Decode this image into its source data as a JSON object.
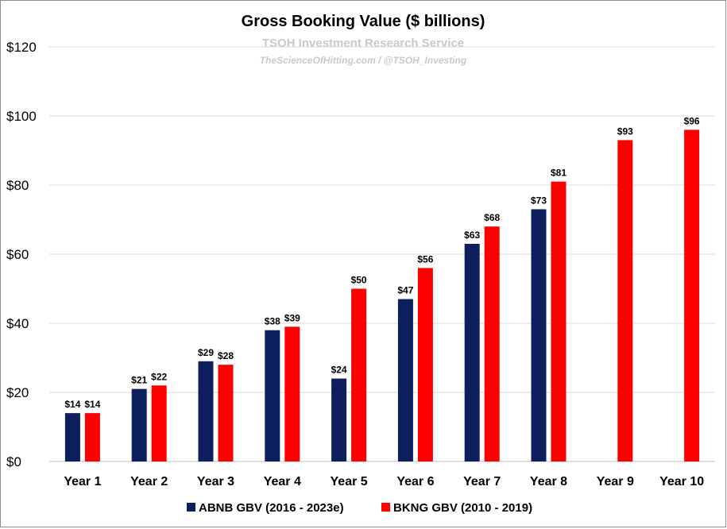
{
  "chart_data": {
    "type": "bar",
    "title": "Gross Booking Value ($ billions)",
    "subtitle": "TSOH Investment Research Service",
    "credit": "TheScienceOfHitting.com / @TSOH_Investing",
    "categories": [
      "Year 1",
      "Year 2",
      "Year 3",
      "Year 4",
      "Year 5",
      "Year 6",
      "Year 7",
      "Year 8",
      "Year 9",
      "Year 10"
    ],
    "series": [
      {
        "name": "ABNB GBV (2016 - 2023e)",
        "color": "#0d1f5c",
        "values": [
          14,
          21,
          29,
          38,
          24,
          47,
          63,
          73,
          null,
          null
        ],
        "labels": [
          "$14",
          "$21",
          "$29",
          "$38",
          "$24",
          "$47",
          "$63",
          "$73",
          null,
          null
        ]
      },
      {
        "name": "BKNG GBV (2010 - 2019)",
        "color": "#ff0000",
        "values": [
          14,
          22,
          28,
          39,
          50,
          56,
          68,
          81,
          93,
          96
        ],
        "labels": [
          "$14",
          "$22",
          "$28",
          "$39",
          "$50",
          "$56",
          "$68",
          "$81",
          "$93",
          "$96"
        ]
      }
    ],
    "yticks": [
      {
        "value": 0,
        "label": "$0"
      },
      {
        "value": 20,
        "label": "$20"
      },
      {
        "value": 40,
        "label": "$40"
      },
      {
        "value": 60,
        "label": "$60"
      },
      {
        "value": 80,
        "label": "$80"
      },
      {
        "value": 100,
        "label": "$100"
      },
      {
        "value": 120,
        "label": "$120"
      }
    ],
    "ylim": [
      0,
      120
    ],
    "xlabel": "",
    "ylabel": "",
    "grid": true,
    "legend_position": "bottom"
  }
}
